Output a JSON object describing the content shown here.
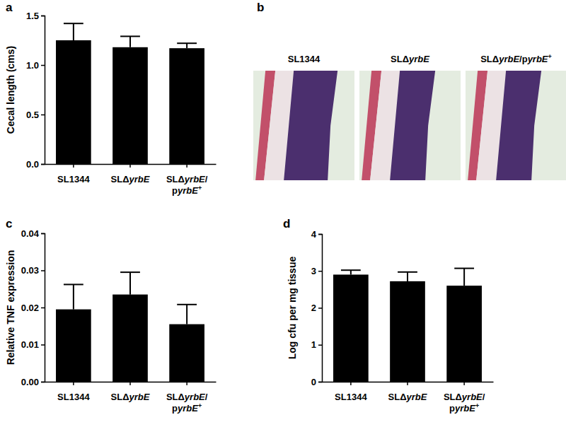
{
  "chart_data": [
    {
      "type": "bar",
      "title": "a",
      "y_label": "Cecal length (cms)",
      "categories": [
        "SL1344",
        "SLΔyrbE",
        "SLΔyrbE/pyrbE+"
      ],
      "values": [
        1.25,
        1.18,
        1.17
      ],
      "errors": [
        0.17,
        0.11,
        0.05
      ],
      "color": "#000000",
      "ylim": [
        0,
        1.5
      ],
      "yticks": [
        {
          "value": 0,
          "label": "0.0"
        },
        {
          "value": 0.5,
          "label": "0.5"
        },
        {
          "value": 1,
          "label": "1.0"
        },
        {
          "value": 1.5,
          "label": "1.5"
        }
      ]
    },
    {
      "type": "image",
      "title": "b",
      "categories": [
        "SL1344",
        "SLΔyrbE",
        "SLΔyrbE/pyrbE+"
      ]
    },
    {
      "type": "bar",
      "title": "c",
      "y_label": "Relative TNF expression",
      "categories": [
        "SL1344",
        "SLΔyrbE",
        "SLΔyrbE/pyrbE+"
      ],
      "values": [
        0.0195,
        0.0235,
        0.0155
      ],
      "errors": [
        0.0067,
        0.006,
        0.0053
      ],
      "color": "#000000",
      "ylim": [
        0,
        0.04
      ],
      "yticks": [
        {
          "value": 0,
          "label": "0.00"
        },
        {
          "value": 0.01,
          "label": "0.01"
        },
        {
          "value": 0.02,
          "label": "0.02"
        },
        {
          "value": 0.03,
          "label": "0.03"
        },
        {
          "value": 0.04,
          "label": "0.04"
        }
      ]
    },
    {
      "type": "bar",
      "title": "d",
      "y_label": "Log cfu per mg tissue",
      "categories": [
        "SL1344",
        "SLΔyrbE",
        "SLΔyrbE/pyrbE+"
      ],
      "values": [
        2.9,
        2.72,
        2.6
      ],
      "errors": [
        0.12,
        0.25,
        0.47
      ],
      "color": "#000000",
      "ylim": [
        0,
        4
      ],
      "yticks": [
        0,
        1,
        2,
        3,
        4
      ]
    }
  ]
}
